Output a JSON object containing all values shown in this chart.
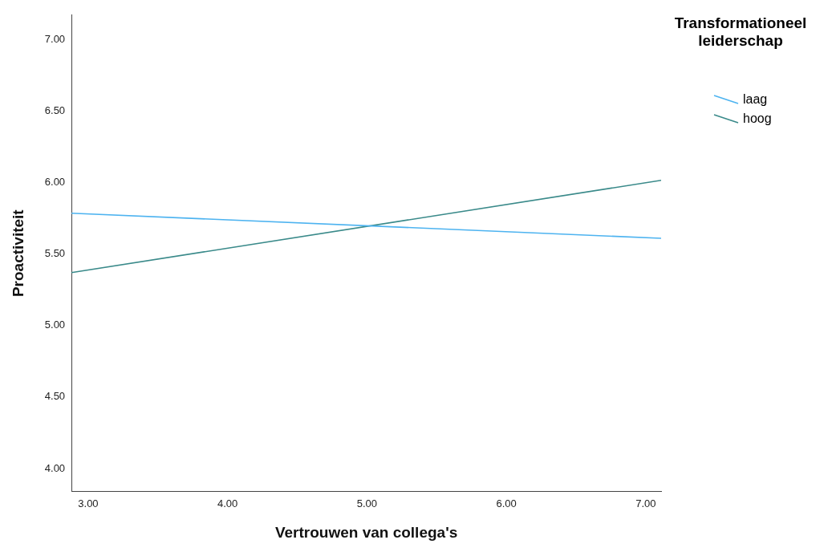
{
  "chart_data": {
    "type": "line",
    "xlabel": "Vertrouwen van collega's",
    "ylabel": "Proactiviteit",
    "legend_title": "Transformationeel leiderschap",
    "legend": "top right",
    "grid": false,
    "marker": "none",
    "line_style": "solid",
    "x": [
      2.88,
      7.11
    ],
    "series": [
      {
        "name": "laag",
        "color": "#4db3f0",
        "values": [
          5.785,
          5.61
        ]
      },
      {
        "name": "hoog",
        "color": "#3a8a8a",
        "values": [
          5.37,
          6.015
        ]
      }
    ],
    "xlim": [
      2.88,
      7.11
    ],
    "xticks": [
      {
        "value": 3,
        "label": "3.00"
      },
      {
        "value": 4,
        "label": "4.00"
      },
      {
        "value": 5,
        "label": "5.00"
      },
      {
        "value": 6,
        "label": "6.00"
      },
      {
        "value": 7,
        "label": "7.00"
      }
    ],
    "ylim": [
      3.84,
      7.17
    ],
    "yticks": [
      {
        "value": 4,
        "label": "4.00"
      },
      {
        "value": 4.5,
        "label": "4.50"
      },
      {
        "value": 5,
        "label": "5.00"
      },
      {
        "value": 5.5,
        "label": "5.50"
      },
      {
        "value": 6,
        "label": "6.00"
      },
      {
        "value": 6.5,
        "label": "6.50"
      },
      {
        "value": 7,
        "label": "7.00"
      }
    ]
  }
}
